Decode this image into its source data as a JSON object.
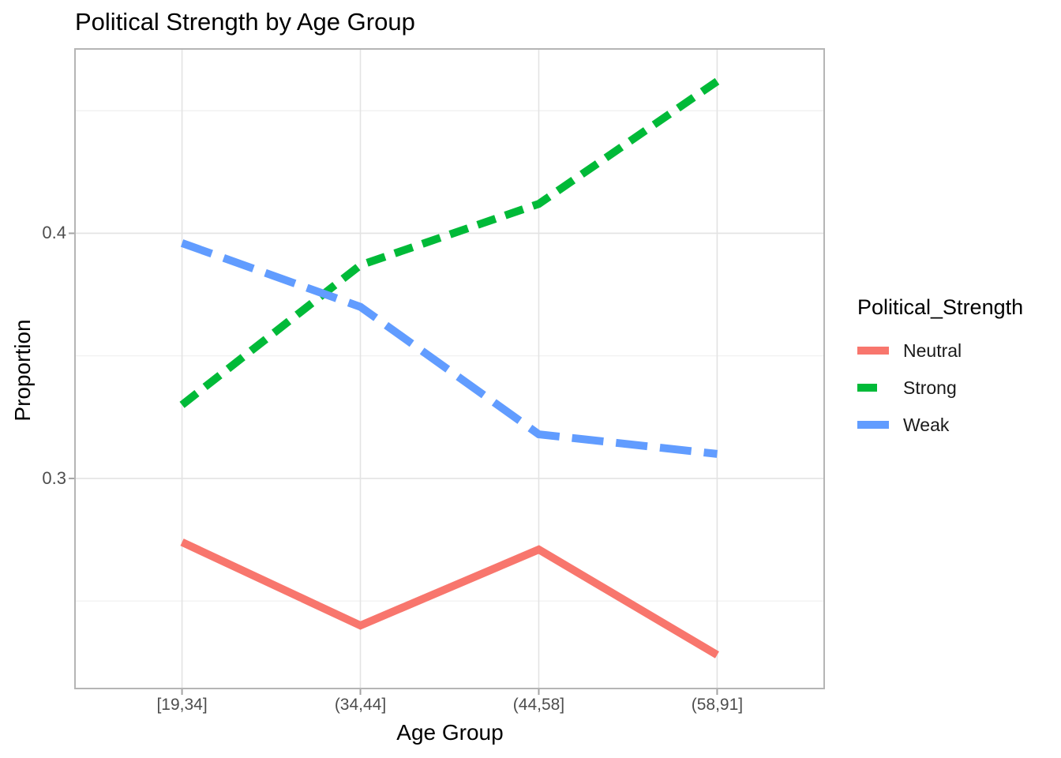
{
  "chart_data": {
    "type": "line",
    "title": "Political Strength by Age Group",
    "xlabel": "Age Group",
    "ylabel": "Proportion",
    "categories": [
      "[19,34]",
      "(34,44]",
      "(44,58]",
      "(58,91]"
    ],
    "series": [
      {
        "name": "Neutral",
        "color": "#F8766D",
        "linetype": "solid",
        "values": [
          0.274,
          0.24,
          0.271,
          0.228
        ]
      },
      {
        "name": "Strong",
        "color": "#00BA38",
        "linetype": "dashed",
        "values": [
          0.33,
          0.387,
          0.412,
          0.462
        ]
      },
      {
        "name": "Weak",
        "color": "#619CFF",
        "linetype": "longdash",
        "values": [
          0.396,
          0.37,
          0.318,
          0.31
        ]
      }
    ],
    "y_major_ticks": [
      0.3,
      0.4
    ],
    "y_tick_labels": [
      "0.3",
      "0.4"
    ],
    "y_minor_gridlines": [
      0.25,
      0.35,
      0.45
    ],
    "ylim": [
      0.2143,
      0.4752
    ],
    "grid": true,
    "legend": {
      "title": "Political_Strength",
      "position": "right",
      "entries": [
        "Neutral",
        "Strong",
        "Weak"
      ]
    },
    "panel_background": "#FFFFFF"
  }
}
